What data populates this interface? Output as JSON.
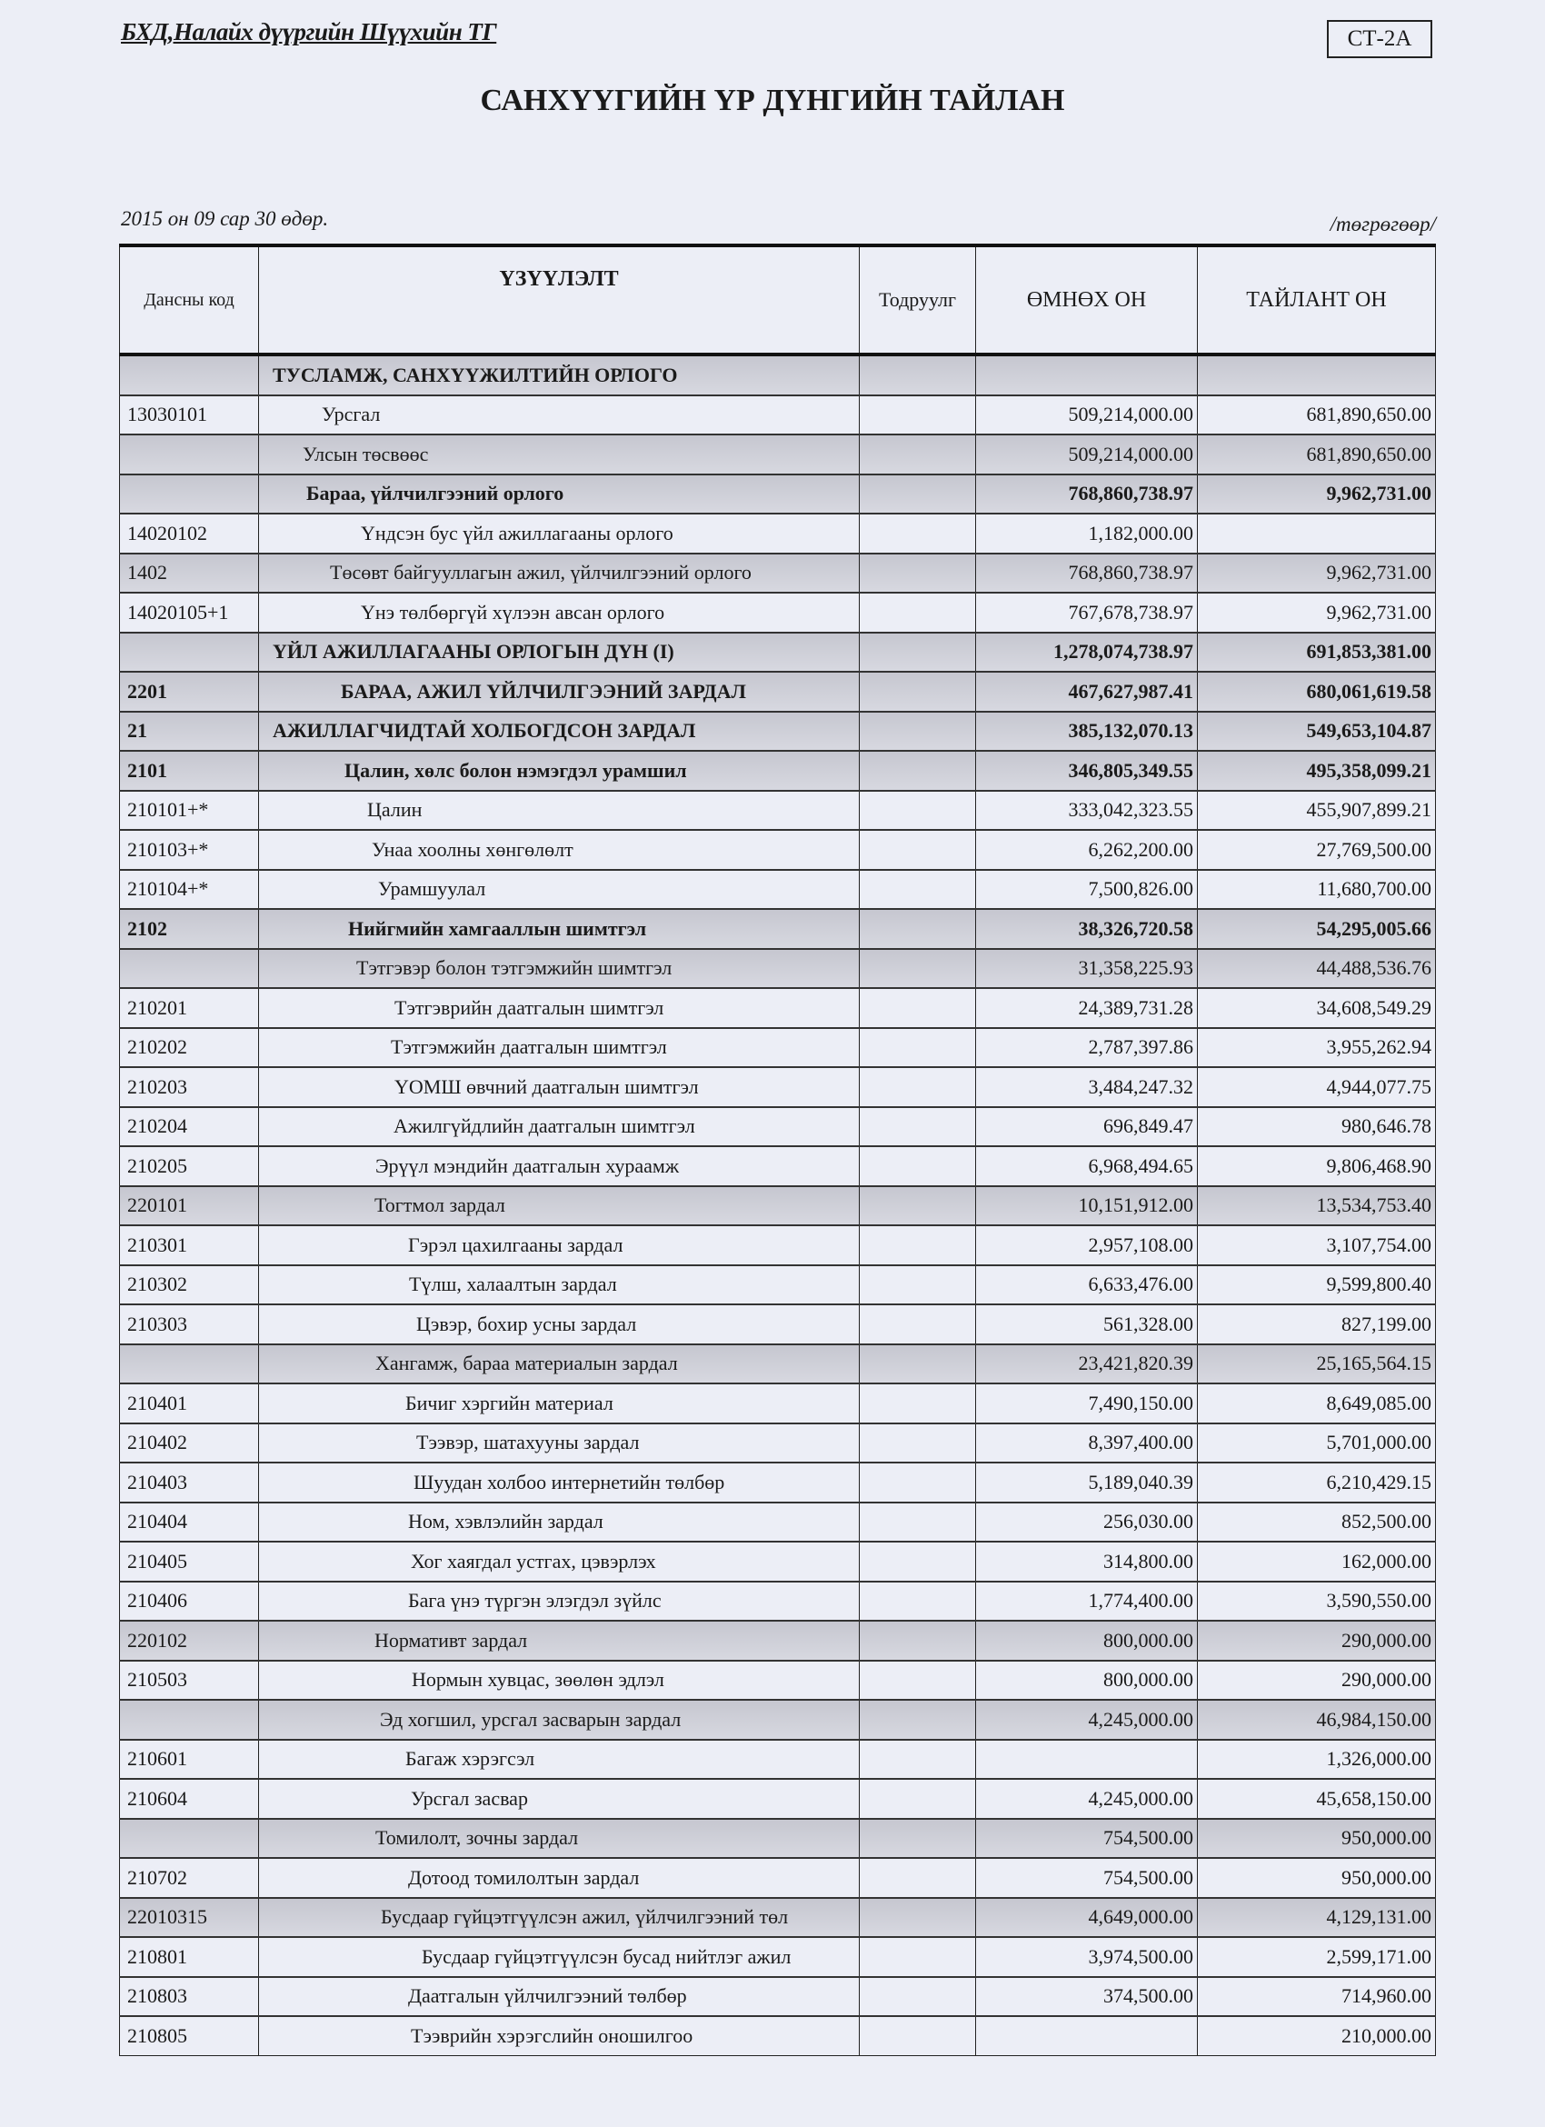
{
  "header": {
    "organization": "БХД,Налайх дүүргийн Шүүхийн ТГ",
    "form_code": "СТ-2А",
    "title": "САНХҮҮГИЙН ҮР ДҮНГИЙН ТАЙЛАН",
    "date": "2015 он 09 сар 30 өдөр.",
    "unit": "/төгрөгөөр/"
  },
  "table": {
    "columns": [
      "Дансны код",
      "ҮЗҮҮЛЭЛТ",
      "Тодруулг",
      "ӨМНӨХ ОН",
      "ТАЙЛАНТ ОН"
    ],
    "rows": [
      {
        "code": "",
        "label": "ТУСЛАМЖ, САНХҮҮЖИЛТИЙН ОРЛОГО",
        "note": "",
        "prev": "",
        "curr": "",
        "bold": true,
        "shaded": true
      },
      {
        "code": "13030101",
        "label": "Урсгал",
        "note": "",
        "prev": "509,214,000.00",
        "curr": "681,890,650.00"
      },
      {
        "code": "",
        "label": "Улсын төсвөөс",
        "note": "",
        "prev": "509,214,000.00",
        "curr": "681,890,650.00",
        "shaded": true
      },
      {
        "code": "",
        "label": "Бараа, үйлчилгээний орлого",
        "note": "",
        "prev": "768,860,738.97",
        "curr": "9,962,731.00",
        "bold": true,
        "shaded": true
      },
      {
        "code": "14020102",
        "label": "Үндсэн бус үйл ажиллагааны орлого",
        "note": "",
        "prev": "1,182,000.00",
        "curr": ""
      },
      {
        "code": "1402",
        "label": "Төсөвт байгууллагын ажил, үйлчилгээний орлого",
        "note": "",
        "prev": "768,860,738.97",
        "curr": "9,962,731.00",
        "shaded": true
      },
      {
        "code": "14020105+1",
        "label": "Үнэ төлбөргүй хүлээн авсан орлого",
        "note": "",
        "prev": "767,678,738.97",
        "curr": "9,962,731.00"
      },
      {
        "code": "",
        "label": "ҮЙЛ АЖИЛЛАГААНЫ ОРЛОГЫН ДҮН (I)",
        "note": "",
        "prev": "1,278,074,738.97",
        "curr": "691,853,381.00",
        "bold": true,
        "shaded": true
      },
      {
        "code": "2201",
        "label": "БАРАА, АЖИЛ ҮЙЛЧИЛГЭЭНИЙ ЗАРДАЛ",
        "note": "",
        "prev": "467,627,987.41",
        "curr": "680,061,619.58",
        "bold": true,
        "shaded": true
      },
      {
        "code": "21",
        "label": "АЖИЛЛАГЧИДТАЙ ХОЛБОГДСОН ЗАРДАЛ",
        "note": "",
        "prev": "385,132,070.13",
        "curr": "549,653,104.87",
        "bold": true,
        "shaded": true
      },
      {
        "code": "2101",
        "label": "Цалин, хөлс болон нэмэгдэл урамшил",
        "note": "",
        "prev": "346,805,349.55",
        "curr": "495,358,099.21",
        "bold": true,
        "shaded": true
      },
      {
        "code": "210101+*",
        "label": "Цалин",
        "note": "",
        "prev": "333,042,323.55",
        "curr": "455,907,899.21"
      },
      {
        "code": "210103+*",
        "label": "Унаа хоолны хөнгөлөлт",
        "note": "",
        "prev": "6,262,200.00",
        "curr": "27,769,500.00"
      },
      {
        "code": "210104+*",
        "label": "Урамшуулал",
        "note": "",
        "prev": "7,500,826.00",
        "curr": "11,680,700.00"
      },
      {
        "code": "2102",
        "label": "Нийгмийн хамгааллын шимтгэл",
        "note": "",
        "prev": "38,326,720.58",
        "curr": "54,295,005.66",
        "bold": true,
        "shaded": true
      },
      {
        "code": "",
        "label": "Тэтгэвэр болон тэтгэмжийн шимтгэл",
        "note": "",
        "prev": "31,358,225.93",
        "curr": "44,488,536.76",
        "shaded": true
      },
      {
        "code": "210201",
        "label": "Тэтгэврийн даатгалын шимтгэл",
        "note": "",
        "prev": "24,389,731.28",
        "curr": "34,608,549.29"
      },
      {
        "code": "210202",
        "label": "Тэтгэмжийн даатгалын шимтгэл",
        "note": "",
        "prev": "2,787,397.86",
        "curr": "3,955,262.94"
      },
      {
        "code": "210203",
        "label": "ҮОМШ өвчний даатгалын шимтгэл",
        "note": "",
        "prev": "3,484,247.32",
        "curr": "4,944,077.75"
      },
      {
        "code": "210204",
        "label": "Ажилгүйдлийн даатгалын шимтгэл",
        "note": "",
        "prev": "696,849.47",
        "curr": "980,646.78"
      },
      {
        "code": "210205",
        "label": "Эрүүл мэндийн даатгалын хураамж",
        "note": "",
        "prev": "6,968,494.65",
        "curr": "9,806,468.90"
      },
      {
        "code": "220101",
        "label": "Тогтмол зардал",
        "note": "",
        "prev": "10,151,912.00",
        "curr": "13,534,753.40",
        "shaded": true
      },
      {
        "code": "210301",
        "label": "Гэрэл цахилгааны зардал",
        "note": "",
        "prev": "2,957,108.00",
        "curr": "3,107,754.00"
      },
      {
        "code": "210302",
        "label": "Түлш, халаалтын зардал",
        "note": "",
        "prev": "6,633,476.00",
        "curr": "9,599,800.40"
      },
      {
        "code": "210303",
        "label": "Цэвэр, бохир усны зардал",
        "note": "",
        "prev": "561,328.00",
        "curr": "827,199.00"
      },
      {
        "code": "",
        "label": "Хангамж, бараа материалын зардал",
        "note": "",
        "prev": "23,421,820.39",
        "curr": "25,165,564.15",
        "shaded": true
      },
      {
        "code": "210401",
        "label": "Бичиг хэргийн материал",
        "note": "",
        "prev": "7,490,150.00",
        "curr": "8,649,085.00"
      },
      {
        "code": "210402",
        "label": "Тээвэр, шатахууны зардал",
        "note": "",
        "prev": "8,397,400.00",
        "curr": "5,701,000.00"
      },
      {
        "code": "210403",
        "label": "Шуудан холбоо интернетийн төлбөр",
        "note": "",
        "prev": "5,189,040.39",
        "curr": "6,210,429.15"
      },
      {
        "code": "210404",
        "label": "Ном, хэвлэлийн зардал",
        "note": "",
        "prev": "256,030.00",
        "curr": "852,500.00"
      },
      {
        "code": "210405",
        "label": "Хог хаягдал устгах, цэвэрлэх",
        "note": "",
        "prev": "314,800.00",
        "curr": "162,000.00"
      },
      {
        "code": "210406",
        "label": "Бага үнэ түргэн элэгдэл зүйлс",
        "note": "",
        "prev": "1,774,400.00",
        "curr": "3,590,550.00"
      },
      {
        "code": "220102",
        "label": "Нормативт зардал",
        "note": "",
        "prev": "800,000.00",
        "curr": "290,000.00",
        "shaded": true
      },
      {
        "code": "210503",
        "label": "Нормын хувцас, зөөлөн эдлэл",
        "note": "",
        "prev": "800,000.00",
        "curr": "290,000.00"
      },
      {
        "code": "",
        "label": "Эд хогшил, урсгал засварын зардал",
        "note": "",
        "prev": "4,245,000.00",
        "curr": "46,984,150.00",
        "shaded": true
      },
      {
        "code": "210601",
        "label": "Багаж хэрэгсэл",
        "note": "",
        "prev": "",
        "curr": "1,326,000.00"
      },
      {
        "code": "210604",
        "label": "Урсгал засвар",
        "note": "",
        "prev": "4,245,000.00",
        "curr": "45,658,150.00"
      },
      {
        "code": "",
        "label": "Томилолт, зочны зардал",
        "note": "",
        "prev": "754,500.00",
        "curr": "950,000.00",
        "shaded": true
      },
      {
        "code": "210702",
        "label": "Дотоод томилолтын зардал",
        "note": "",
        "prev": "754,500.00",
        "curr": "950,000.00"
      },
      {
        "code": "22010315",
        "label": "Бусдаар гүйцэтгүүлсэн ажил, үйлчилгээний төл",
        "note": "",
        "prev": "4,649,000.00",
        "curr": "4,129,131.00",
        "shaded": true
      },
      {
        "code": "210801",
        "label": "Бусдаар гүйцэтгүүлсэн бусад нийтлэг ажил",
        "note": "",
        "prev": "3,974,500.00",
        "curr": "2,599,171.00"
      },
      {
        "code": "210803",
        "label": "Даатгалын үйлчилгээний төлбөр",
        "note": "",
        "prev": "374,500.00",
        "curr": "714,960.00"
      },
      {
        "code": "210805",
        "label": "Тээврийн хэрэгслийн оношилгоо",
        "note": "",
        "prev": "",
        "curr": "210,000.00"
      }
    ]
  }
}
